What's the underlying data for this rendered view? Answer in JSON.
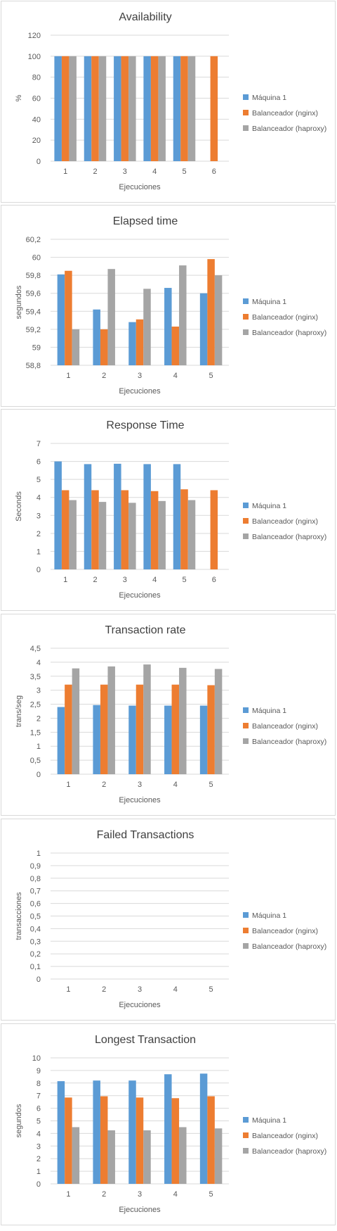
{
  "colors": {
    "maquina": "#5b9bd5",
    "nginx": "#ed7d31",
    "haproxy": "#a5a5a5",
    "grid": "#d9d9d9",
    "text": "#595959",
    "title": "#404040"
  },
  "legend": [
    "Máquina 1",
    "Balanceador (nginx)",
    "Balanceador (haproxy)"
  ],
  "chart_data": [
    {
      "type": "bar",
      "title": "Availability",
      "xlabel": "Ejecuciones",
      "ylabel": "%",
      "categories": [
        "1",
        "2",
        "3",
        "4",
        "5",
        "6"
      ],
      "ylim": [
        0,
        120
      ],
      "yticks": [
        "0",
        "20",
        "40",
        "60",
        "80",
        "100",
        "120"
      ],
      "grid": true,
      "legend_position": "right",
      "series": [
        {
          "name": "Máquina 1",
          "values": [
            100,
            100,
            100,
            100,
            100,
            null
          ]
        },
        {
          "name": "Balanceador (nginx)",
          "values": [
            100,
            100,
            100,
            100,
            100,
            100
          ]
        },
        {
          "name": "Balanceador (haproxy)",
          "values": [
            100,
            100,
            100,
            100,
            100,
            null
          ]
        }
      ]
    },
    {
      "type": "bar",
      "title": "Elapsed time",
      "xlabel": "Ejecuciones",
      "ylabel": "segundos",
      "categories": [
        "1",
        "2",
        "3",
        "4",
        "5"
      ],
      "ylim": [
        58.8,
        60.2
      ],
      "yticks": [
        "58,8",
        "59",
        "59,2",
        "59,4",
        "59,6",
        "59,8",
        "60",
        "60,2"
      ],
      "grid": true,
      "legend_position": "right",
      "series": [
        {
          "name": "Máquina 1",
          "values": [
            59.81,
            59.42,
            59.28,
            59.66,
            59.6
          ]
        },
        {
          "name": "Balanceador (nginx)",
          "values": [
            59.85,
            59.2,
            59.31,
            59.23,
            59.98
          ]
        },
        {
          "name": "Balanceador (haproxy)",
          "values": [
            59.2,
            59.87,
            59.65,
            59.91,
            59.8
          ]
        }
      ]
    },
    {
      "type": "bar",
      "title": "Response Time",
      "xlabel": "Ejecuciones",
      "ylabel": "Seconds",
      "categories": [
        "1",
        "2",
        "3",
        "4",
        "5",
        "6"
      ],
      "ylim": [
        0,
        7
      ],
      "yticks": [
        "0",
        "1",
        "2",
        "3",
        "4",
        "5",
        "6",
        "7"
      ],
      "grid": true,
      "legend_position": "right",
      "series": [
        {
          "name": "Máquina 1",
          "values": [
            6.0,
            5.85,
            5.87,
            5.85,
            5.85,
            null
          ]
        },
        {
          "name": "Balanceador (nginx)",
          "values": [
            4.4,
            4.4,
            4.4,
            4.35,
            4.45,
            4.4
          ]
        },
        {
          "name": "Balanceador (haproxy)",
          "values": [
            3.85,
            3.75,
            3.7,
            3.8,
            3.85,
            null
          ]
        }
      ]
    },
    {
      "type": "bar",
      "title": "Transaction rate",
      "xlabel": "Ejecuciones",
      "ylabel": "trans/seg",
      "categories": [
        "1",
        "2",
        "3",
        "4",
        "5"
      ],
      "ylim": [
        0,
        4.5
      ],
      "yticks": [
        "0",
        "0,5",
        "1",
        "1,5",
        "2",
        "2,5",
        "3",
        "3,5",
        "4",
        "4,5"
      ],
      "grid": true,
      "legend_position": "right",
      "series": [
        {
          "name": "Máquina 1",
          "values": [
            2.4,
            2.47,
            2.45,
            2.45,
            2.45
          ]
        },
        {
          "name": "Balanceador (nginx)",
          "values": [
            3.2,
            3.2,
            3.2,
            3.2,
            3.18
          ]
        },
        {
          "name": "Balanceador (haproxy)",
          "values": [
            3.78,
            3.85,
            3.92,
            3.8,
            3.76
          ]
        }
      ]
    },
    {
      "type": "bar",
      "title": "Failed Transactions",
      "xlabel": "Ejecuciones",
      "ylabel": "transacciones",
      "categories": [
        "1",
        "2",
        "3",
        "4",
        "5"
      ],
      "ylim": [
        0,
        1
      ],
      "yticks": [
        "0",
        "0,1",
        "0,2",
        "0,3",
        "0,4",
        "0,5",
        "0,6",
        "0,7",
        "0,8",
        "0,9",
        "1"
      ],
      "grid": true,
      "legend_position": "right",
      "series": [
        {
          "name": "Máquina 1",
          "values": [
            0,
            0,
            0,
            0,
            0
          ]
        },
        {
          "name": "Balanceador (nginx)",
          "values": [
            0,
            0,
            0,
            0,
            0
          ]
        },
        {
          "name": "Balanceador (haproxy)",
          "values": [
            0,
            0,
            0,
            0,
            0
          ]
        }
      ]
    },
    {
      "type": "bar",
      "title": "Longest Transaction",
      "xlabel": "Ejecuciones",
      "ylabel": "segundos",
      "categories": [
        "1",
        "2",
        "3",
        "4",
        "5"
      ],
      "ylim": [
        0,
        10
      ],
      "yticks": [
        "0",
        "1",
        "2",
        "3",
        "4",
        "5",
        "6",
        "7",
        "8",
        "9",
        "10"
      ],
      "grid": true,
      "legend_position": "right",
      "series": [
        {
          "name": "Máquina 1",
          "values": [
            8.15,
            8.2,
            8.2,
            8.7,
            8.75
          ]
        },
        {
          "name": "Balanceador (nginx)",
          "values": [
            6.85,
            6.95,
            6.85,
            6.8,
            6.95
          ]
        },
        {
          "name": "Balanceador (haproxy)",
          "values": [
            4.5,
            4.25,
            4.25,
            4.5,
            4.4
          ]
        }
      ]
    }
  ]
}
